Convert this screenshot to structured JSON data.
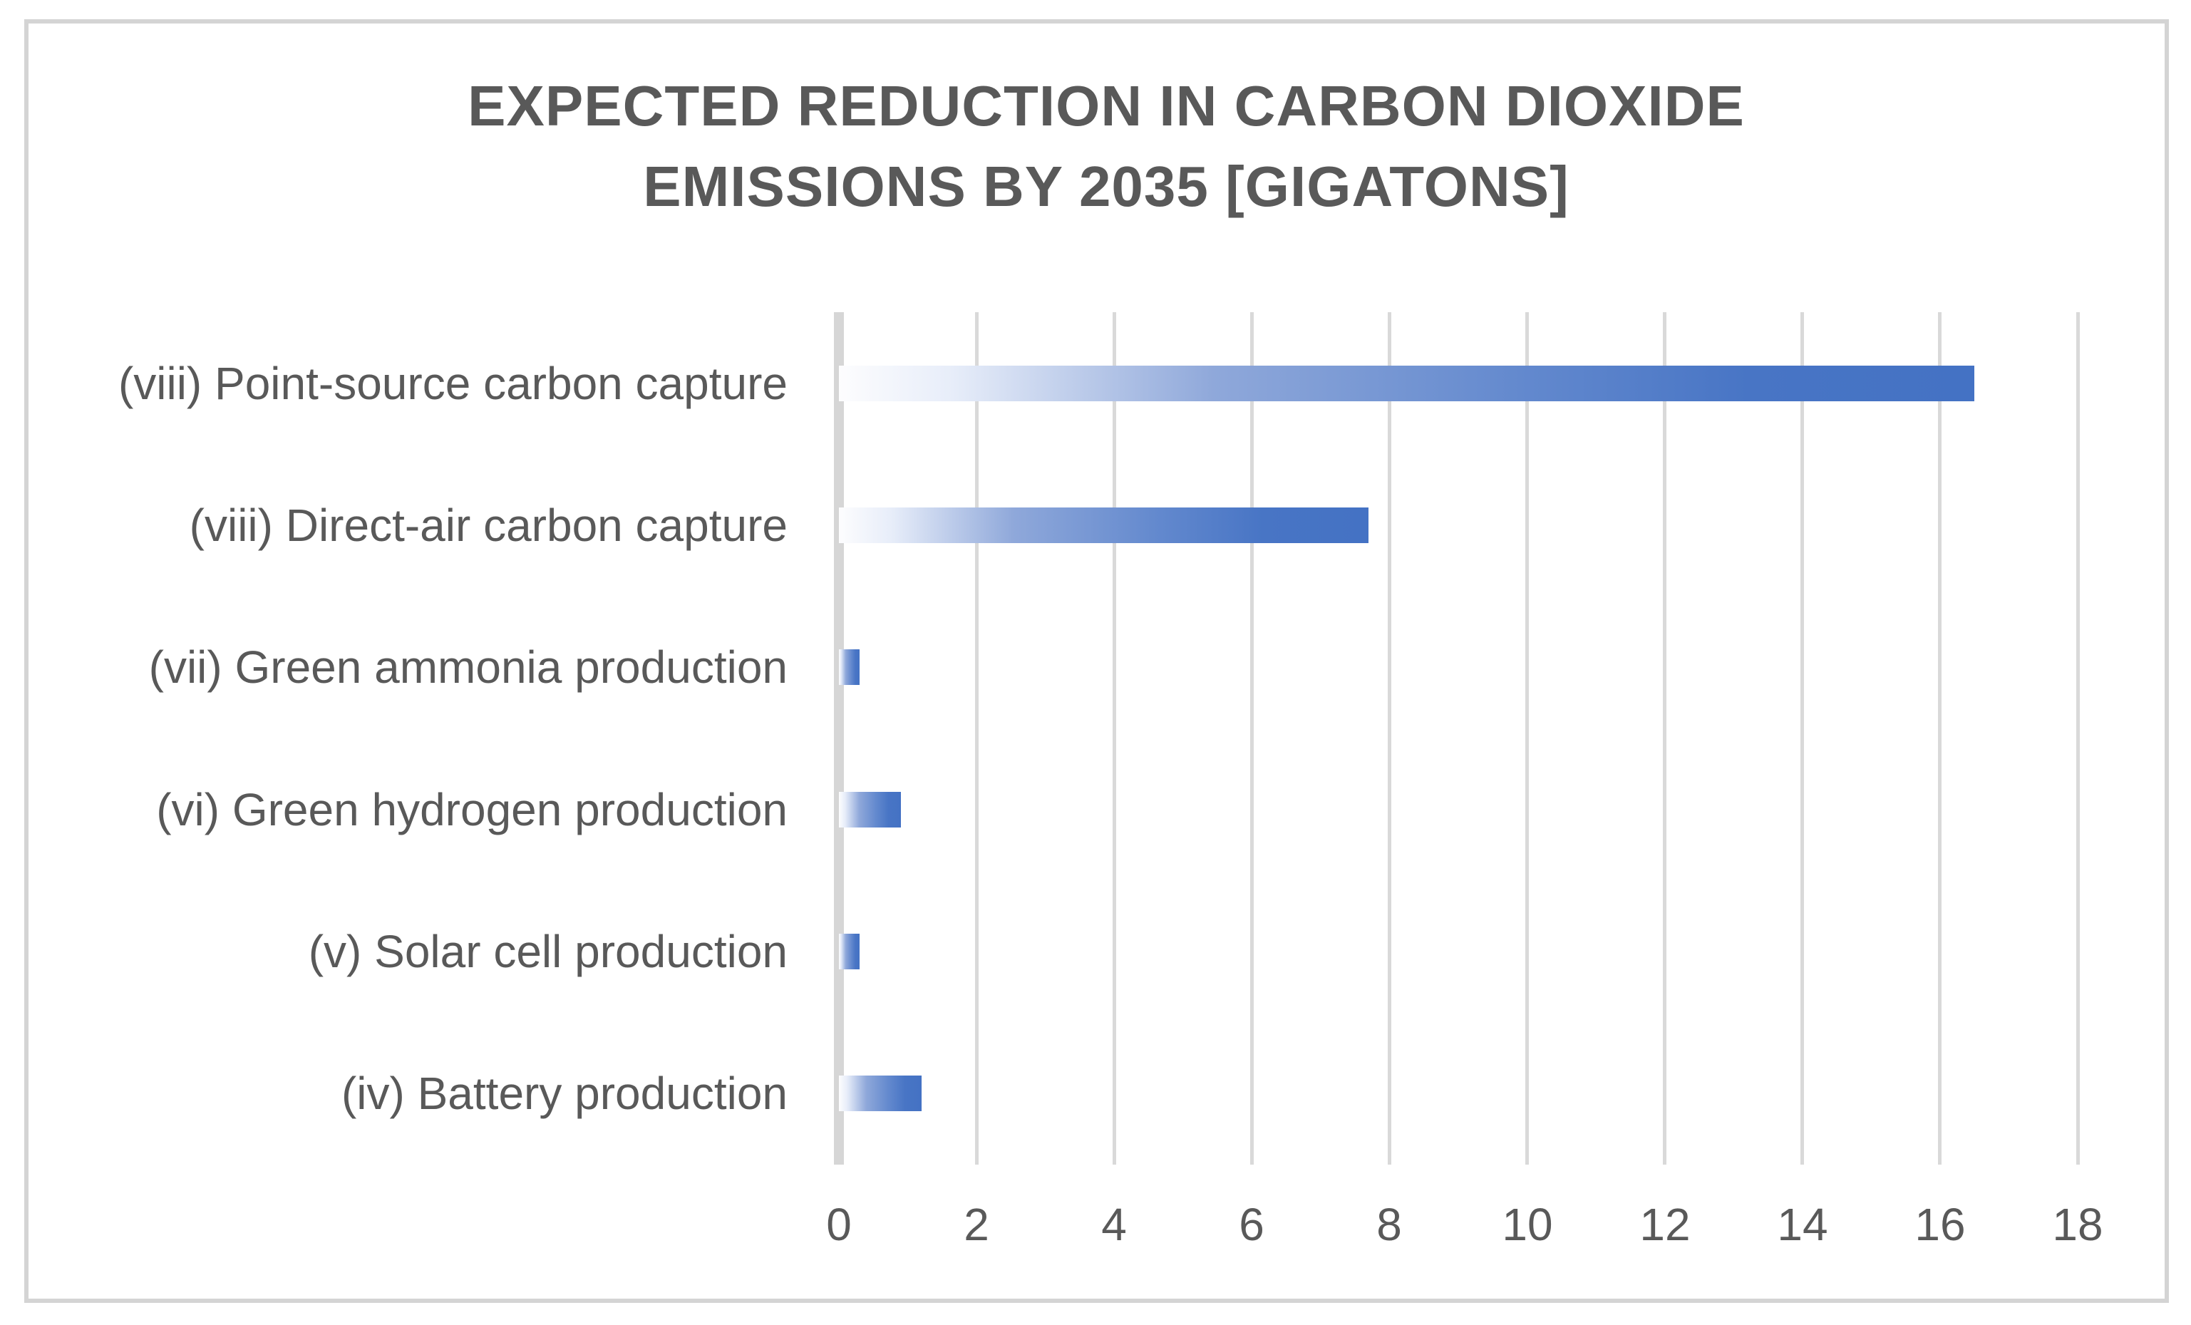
{
  "chart_data": {
    "type": "bar",
    "orientation": "horizontal",
    "title": "EXPECTED REDUCTION IN CARBON DIOXIDE EMISSIONS BY 2035 [GIGATONS]",
    "categories": [
      "(viii) Point-source carbon capture",
      "(viii) Direct-air carbon capture",
      "(vii) Green ammonia production",
      "(vi) Green hydrogen production",
      "(v) Solar cell production",
      "(iv) Battery production"
    ],
    "values": [
      16.5,
      7.7,
      0.3,
      0.9,
      0.3,
      1.2
    ],
    "xlabel": "",
    "ylabel": "",
    "xlim": [
      0,
      18
    ],
    "xticks": [
      0,
      2,
      4,
      6,
      8,
      10,
      12,
      14,
      16,
      18
    ],
    "grid": true,
    "legend": false,
    "colors": {
      "bar_gradient_start": "#fdfdfe",
      "bar_gradient_mid": "#8fa8da",
      "bar_gradient_end": "#4472c4",
      "gridline": "#d9d9d9",
      "axis_line": "#d6d6d6",
      "text": "#595959",
      "frame_border": "#d4d4d4"
    }
  }
}
